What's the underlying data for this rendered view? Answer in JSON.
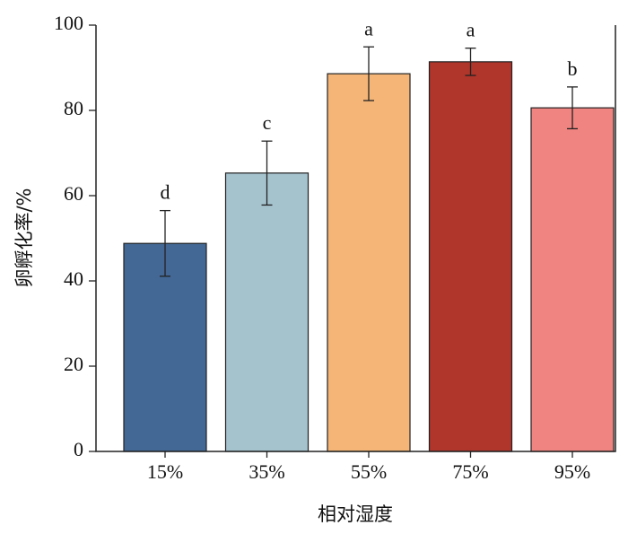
{
  "chart_data": {
    "type": "bar",
    "x_label": "相对湿度",
    "y_label": "卵孵化率/%",
    "categories": [
      "15%",
      "35%",
      "55%",
      "75%",
      "95%"
    ],
    "values": [
      48.8,
      65.3,
      88.6,
      91.4,
      80.6
    ],
    "errors": [
      7.7,
      7.5,
      6.3,
      3.2,
      4.9
    ],
    "significance": [
      "d",
      "c",
      "a",
      "a",
      "b"
    ],
    "colors": [
      "#436896",
      "#a5c3cd",
      "#f5b577",
      "#b0352b",
      "#f08480"
    ],
    "ylim": [
      0,
      100
    ],
    "yticks": [
      0,
      20,
      40,
      60,
      80,
      100
    ]
  }
}
